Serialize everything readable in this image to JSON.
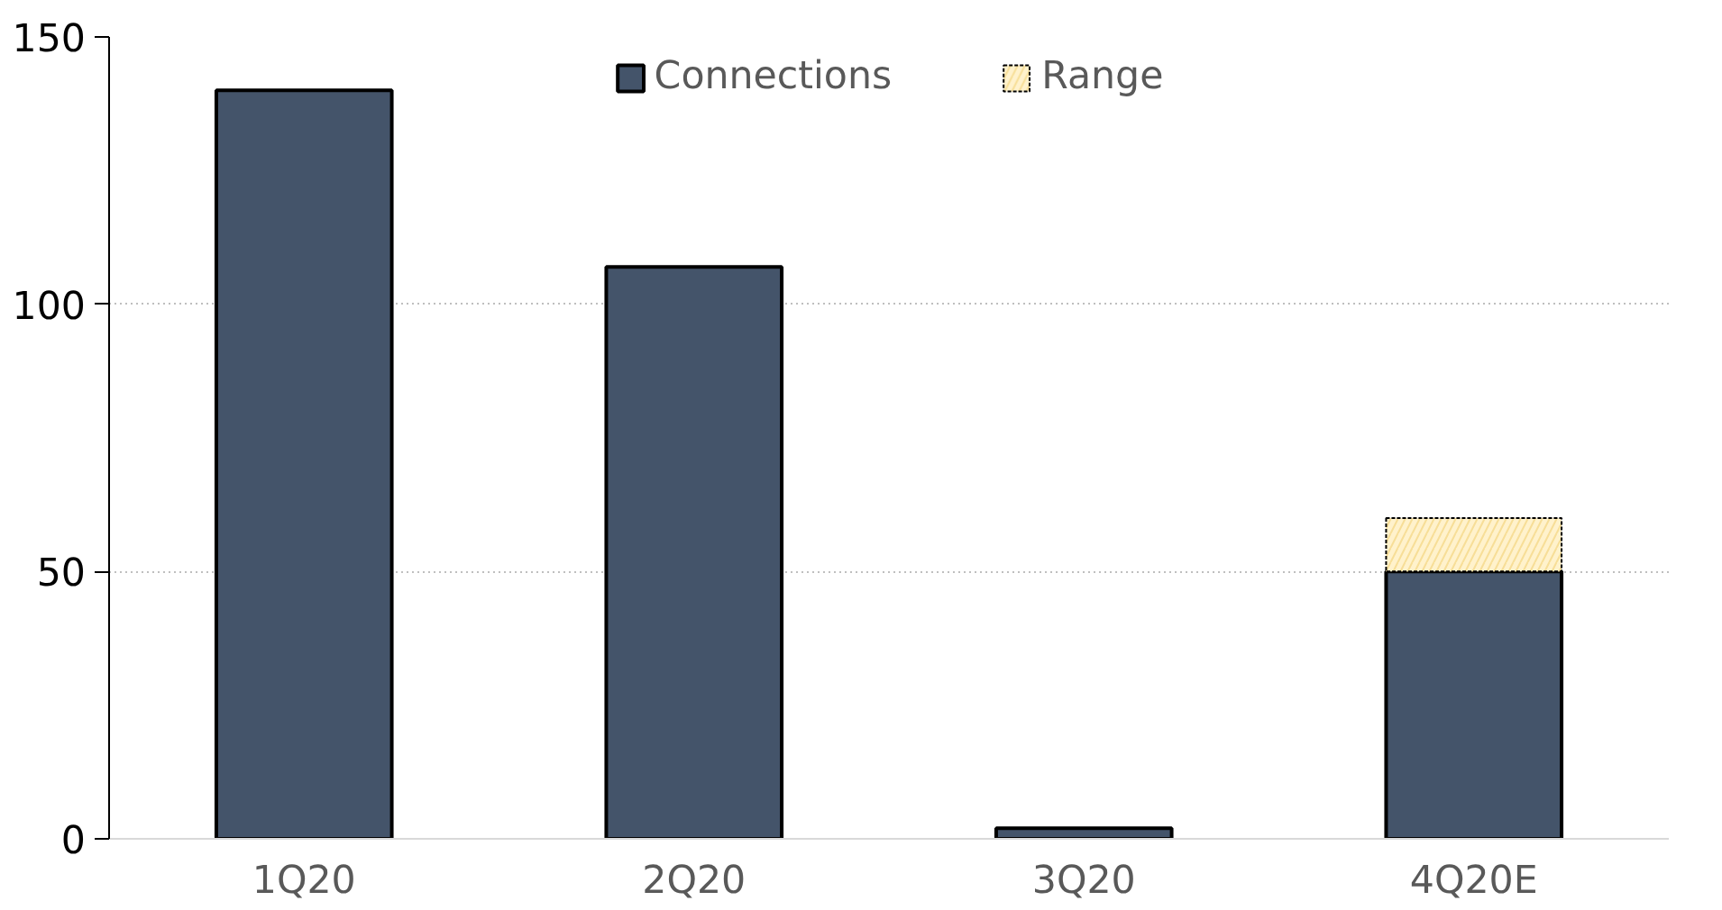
{
  "chart_data": {
    "type": "bar",
    "stacked": true,
    "categories": [
      "1Q20",
      "2Q20",
      "3Q20",
      "4Q20E"
    ],
    "series": [
      {
        "name": "Connections",
        "color": "#44546a",
        "values": [
          140,
          107,
          2,
          50
        ]
      },
      {
        "name": "Range",
        "color": "#fff2cc",
        "values": [
          null,
          null,
          null,
          10
        ]
      }
    ],
    "ylim": [
      0,
      150
    ],
    "yticks": [
      0,
      50,
      100,
      150
    ],
    "grid": "y",
    "legend": "top"
  }
}
